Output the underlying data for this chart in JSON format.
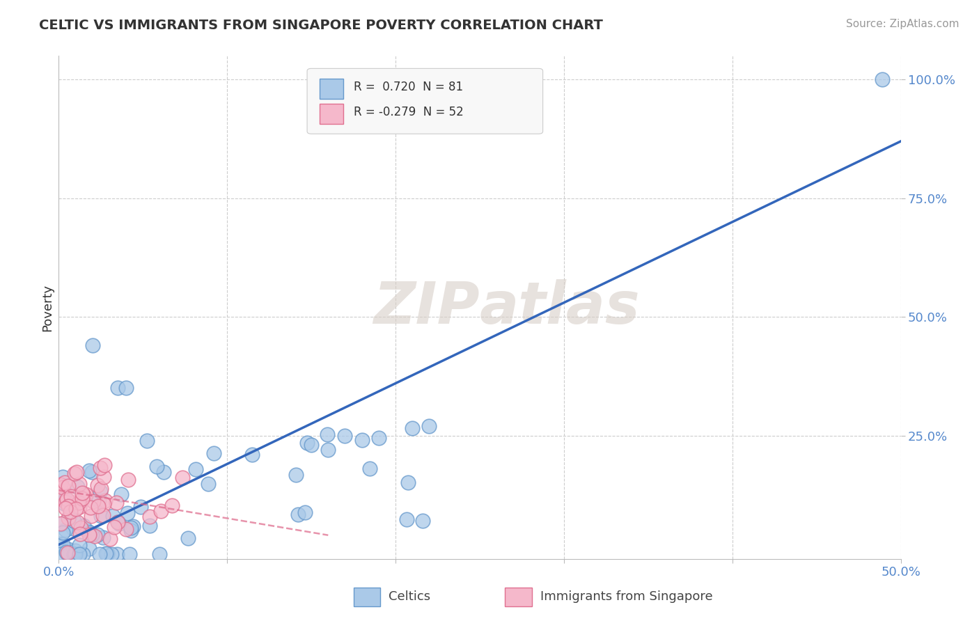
{
  "title": "CELTIC VS IMMIGRANTS FROM SINGAPORE POVERTY CORRELATION CHART",
  "source": "Source: ZipAtlas.com",
  "ylabel": "Poverty",
  "xlim": [
    0.0,
    0.5
  ],
  "ylim": [
    -0.01,
    1.05
  ],
  "xticks": [
    0.0,
    0.1,
    0.2,
    0.3,
    0.4,
    0.5
  ],
  "xticklabels": [
    "0.0%",
    "",
    "",
    "",
    "",
    "50.0%"
  ],
  "ytick_positions": [
    0.25,
    0.5,
    0.75,
    1.0
  ],
  "yticklabels": [
    "25.0%",
    "50.0%",
    "75.0%",
    "100.0%"
  ],
  "celtics_R": 0.72,
  "celtics_N": 81,
  "singapore_R": -0.279,
  "singapore_N": 52,
  "celtics_color": "#aac9e8",
  "celtics_edge": "#6699cc",
  "singapore_color": "#f5b8cb",
  "singapore_edge": "#e07090",
  "trend_blue": "#3366bb",
  "trend_pink": "#dd6688",
  "watermark": "ZIPatlas",
  "watermark_color": "#d8cfc8",
  "background_color": "#ffffff",
  "grid_color": "#cccccc",
  "title_color": "#333333",
  "source_color": "#999999",
  "tick_color": "#5588cc",
  "ylabel_color": "#333333"
}
